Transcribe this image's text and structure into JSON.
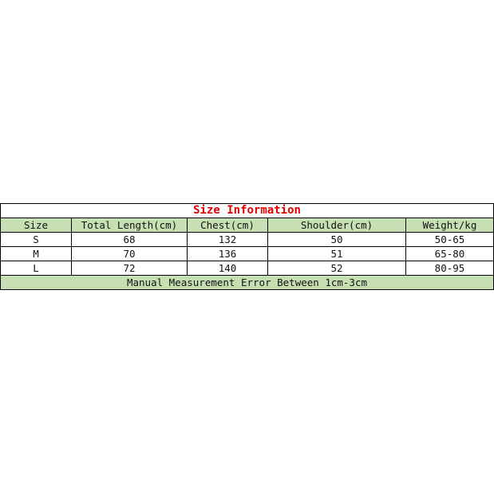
{
  "title": "Size Information",
  "headers": [
    "Size",
    "Total Length(cm)",
    "Chest(cm)",
    "Shoulder(cm)",
    "Weight/kg"
  ],
  "rows": [
    [
      "S",
      "68",
      "132",
      "50",
      "50-65"
    ],
    [
      "M",
      "70",
      "136",
      "51",
      "65-80"
    ],
    [
      "L",
      "72",
      "140",
      "52",
      "80-95"
    ]
  ],
  "footer": "Manual Measurement Error Between 1cm-3cm",
  "colors": {
    "header_bg": "#c6e0b4",
    "title": "#e00000"
  }
}
